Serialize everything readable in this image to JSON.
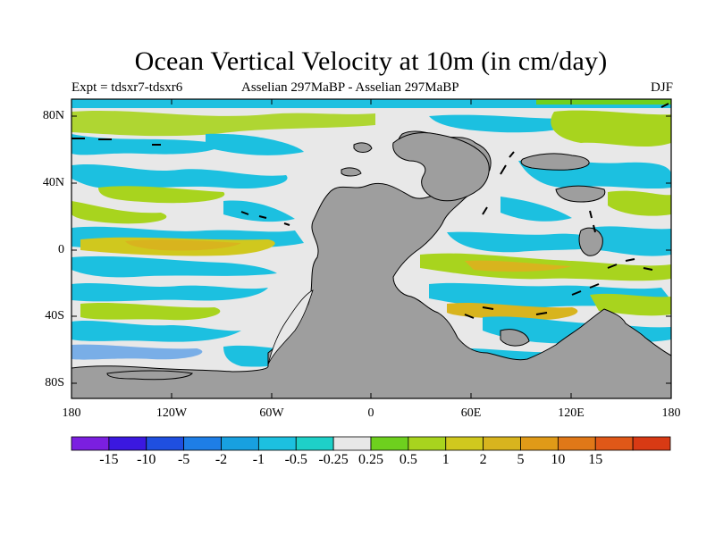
{
  "title": "Ocean Vertical Velocity at 10m (in cm/day)",
  "subtitle_left": "Expt = tdsxr7-tdsxr6",
  "subtitle_center": "Asselian 297MaBP - Asselian 297MaBP",
  "subtitle_right": "DJF",
  "lat_labels": [
    "80N",
    "40N",
    "0",
    "40S",
    "80S"
  ],
  "lon_labels": [
    "180",
    "120W",
    "60W",
    "0",
    "60E",
    "120E",
    "180"
  ],
  "colorbar": {
    "colors": [
      "#7b1fe0",
      "#3b18e0",
      "#1f4fe0",
      "#1e7ee6",
      "#18a0e0",
      "#1cc0e0",
      "#1ed0c8",
      "#e8e8e8",
      "#6ed01e",
      "#a8d41e",
      "#d0c81e",
      "#d8b41e",
      "#e09a18",
      "#e07818",
      "#e05818",
      "#d83a14"
    ],
    "labels": [
      "-15",
      "-10",
      "-5",
      "-2",
      "-1",
      "-0.5",
      "-0.25",
      "0.25",
      "0.5",
      "1",
      "2",
      "5",
      "10",
      "15"
    ]
  },
  "map_colors": {
    "land": "#9e9e9e",
    "neutral": "#e8e8e8"
  }
}
